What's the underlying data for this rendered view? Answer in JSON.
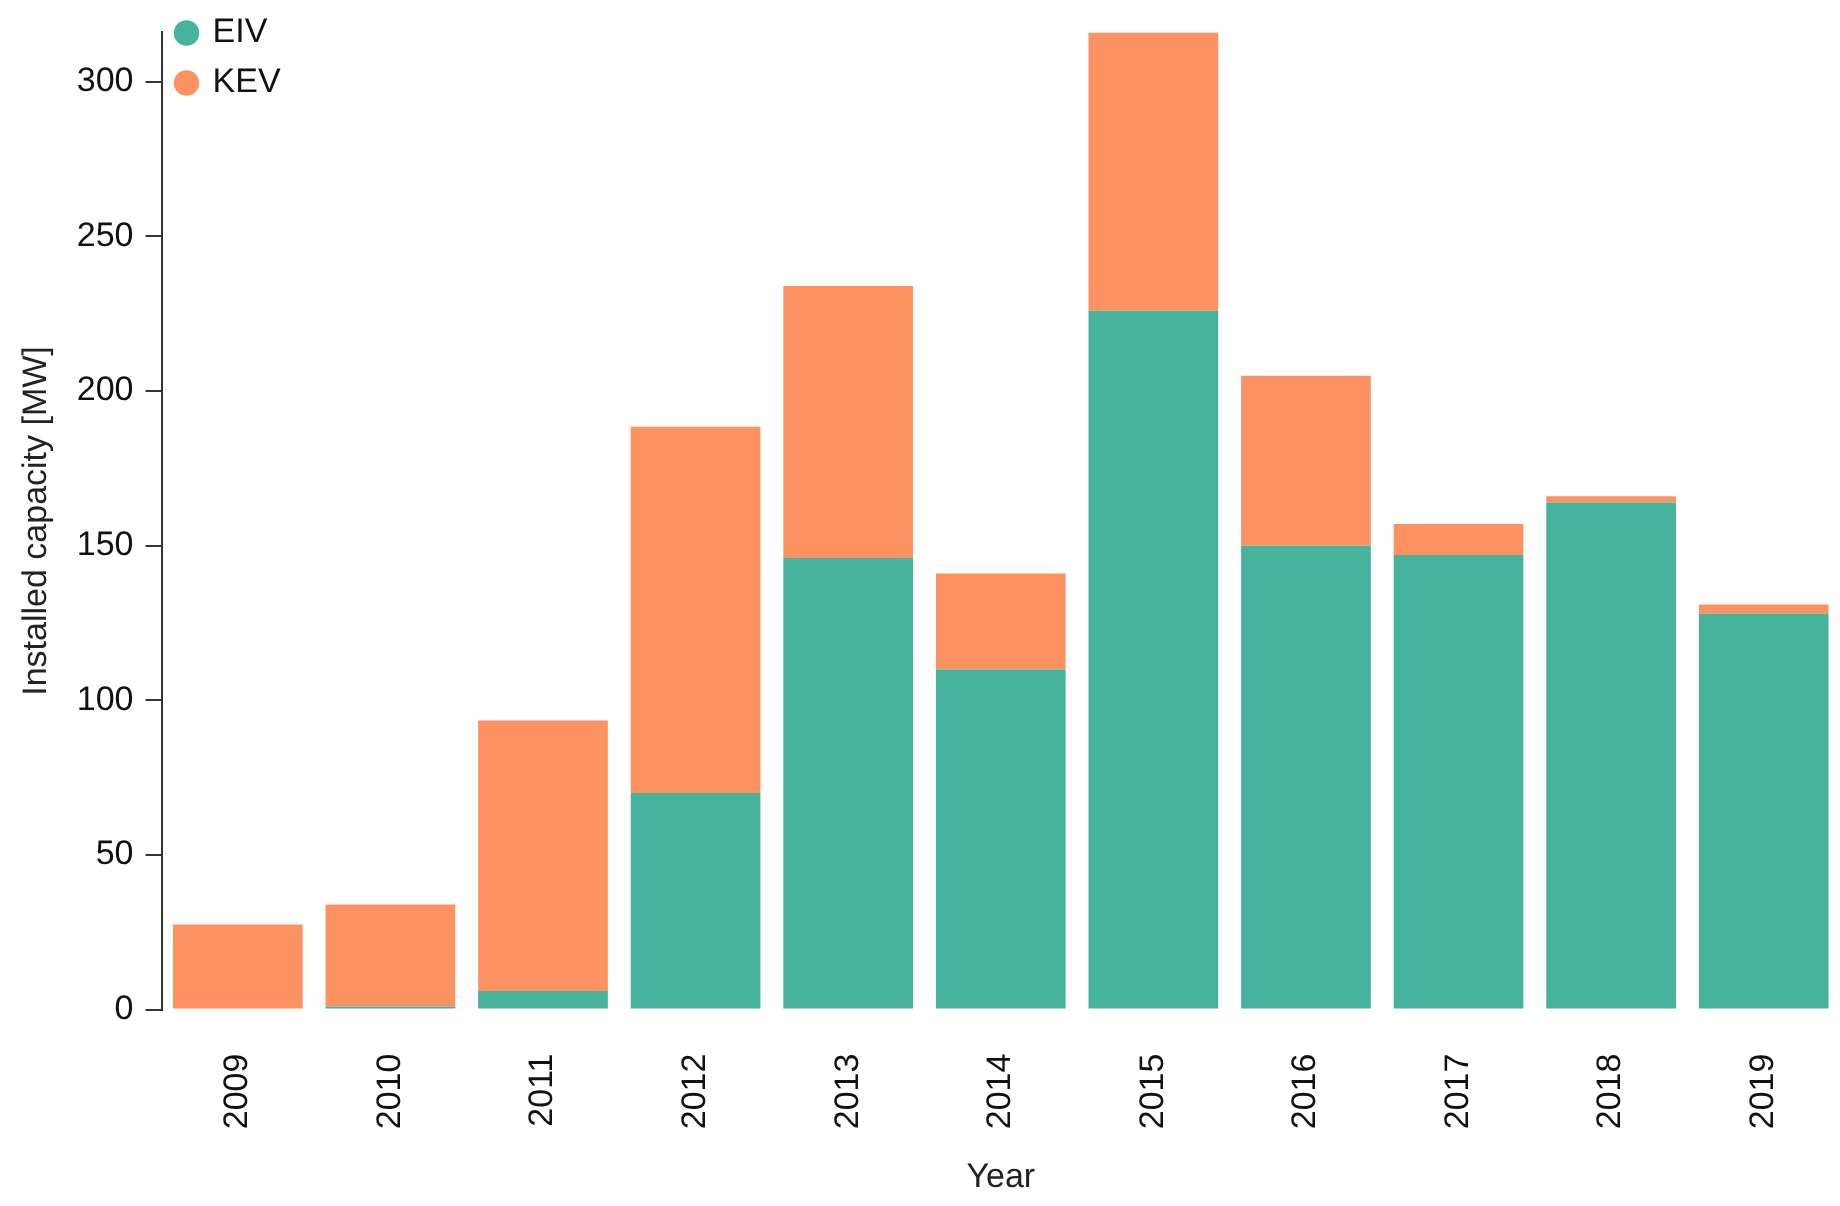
{
  "chart_data": {
    "type": "bar",
    "stacked": true,
    "xlabel": "Year",
    "ylabel": "Installed capacity [MW]",
    "categories": [
      "2009",
      "2010",
      "2011",
      "2012",
      "2013",
      "2014",
      "2015",
      "2016",
      "2017",
      "2018",
      "2019"
    ],
    "series": [
      {
        "name": "EIV",
        "color": "#47b39c",
        "values": [
          0,
          1,
          6,
          70,
          146,
          110,
          226,
          150,
          147,
          164,
          128
        ]
      },
      {
        "name": "KEV",
        "color": "#fc9161",
        "values": [
          27.5,
          33,
          87.5,
          118.5,
          88,
          31,
          90,
          55,
          10,
          2,
          3
        ]
      }
    ],
    "ylim": [
      0,
      316
    ],
    "yticks": [
      0,
      50,
      100,
      150,
      200,
      250,
      300
    ],
    "grid": false,
    "legend": "top left"
  }
}
